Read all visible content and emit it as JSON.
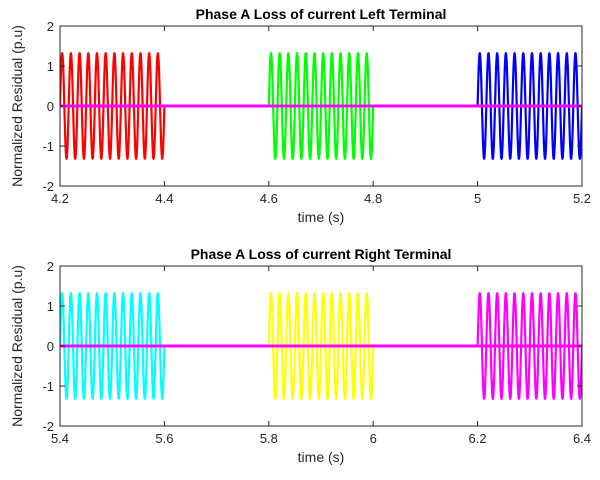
{
  "chart_data": [
    {
      "type": "line",
      "title": "Phase A Loss of current Left Terminal",
      "xlabel": "time (s)",
      "ylabel": "Normalized Residual (p.u)",
      "xlim": [
        4.2,
        5.2
      ],
      "ylim": [
        -2,
        2
      ],
      "xticks": [
        "4.2",
        "4.4",
        "4.6",
        "4.8",
        "5",
        "5.2"
      ],
      "yticks": [
        "-2",
        "-1",
        "0",
        "1",
        "2"
      ],
      "grid": false,
      "series": [
        {
          "color": "#ff0000",
          "kind": "sinusoid",
          "x_start": 4.2,
          "x_end": 4.4,
          "amplitude": 1.32,
          "frequency_hz": 60
        },
        {
          "color": "#00ff00",
          "kind": "sinusoid",
          "x_start": 4.6,
          "x_end": 4.8,
          "amplitude": 1.32,
          "frequency_hz": 60
        },
        {
          "color": "#0000ff",
          "kind": "sinusoid",
          "x_start": 5.0,
          "x_end": 5.2,
          "amplitude": 1.32,
          "frequency_hz": 60
        },
        {
          "color": "#ff00ff",
          "kind": "constant",
          "x_start": 4.2,
          "x_end": 5.2,
          "value": 0
        }
      ]
    },
    {
      "type": "line",
      "title": "Phase A Loss of current Right Terminal",
      "xlabel": "time (s)",
      "ylabel": "Normalized Residual (p.u)",
      "xlim": [
        5.4,
        6.4
      ],
      "ylim": [
        -2,
        2
      ],
      "xticks": [
        "5.4",
        "5.6",
        "5.8",
        "6",
        "6.2",
        "6.4"
      ],
      "yticks": [
        "-2",
        "-1",
        "0",
        "1",
        "2"
      ],
      "grid": false,
      "series": [
        {
          "color": "#00ffff",
          "kind": "sinusoid",
          "x_start": 5.4,
          "x_end": 5.6,
          "amplitude": 1.32,
          "frequency_hz": 60
        },
        {
          "color": "#ffff00",
          "kind": "sinusoid",
          "x_start": 5.8,
          "x_end": 6.0,
          "amplitude": 1.32,
          "frequency_hz": 60
        },
        {
          "color": "#ff00ff",
          "kind": "sinusoid",
          "x_start": 6.2,
          "x_end": 6.4,
          "amplitude": 1.32,
          "frequency_hz": 60
        },
        {
          "color": "#ff00ff",
          "kind": "constant",
          "x_start": 5.4,
          "x_end": 6.4,
          "value": 0
        }
      ]
    }
  ]
}
